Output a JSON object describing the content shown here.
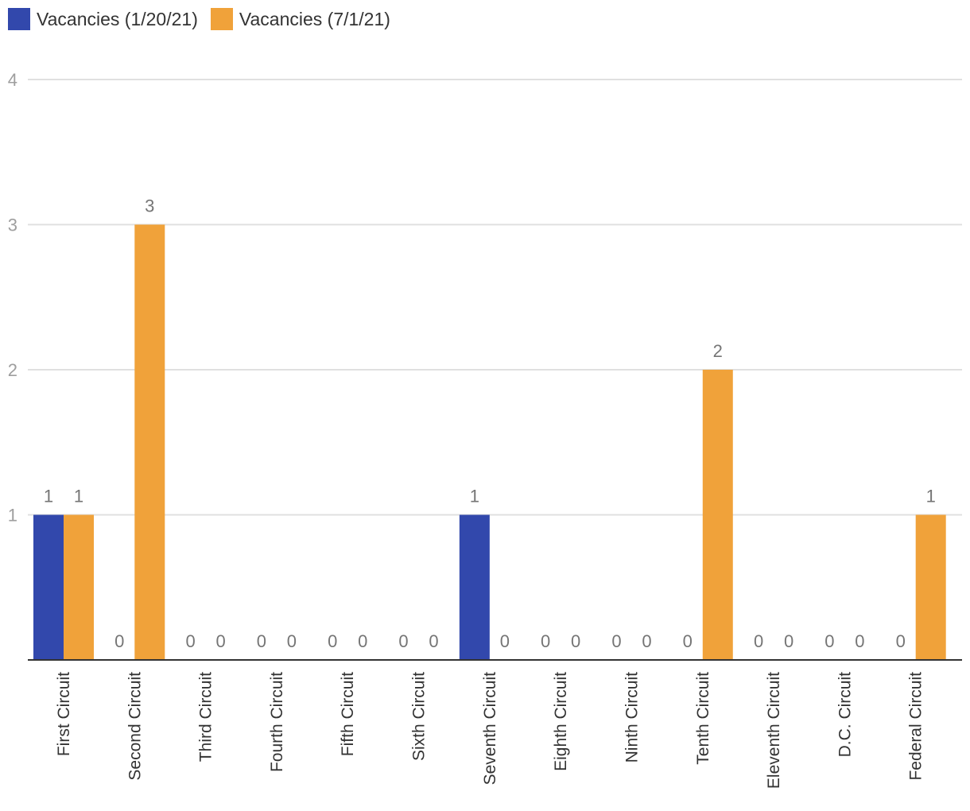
{
  "chart_data": {
    "type": "bar",
    "title": "",
    "xlabel": "",
    "ylabel": "",
    "ylim": [
      0,
      4
    ],
    "yticks": [
      1,
      2,
      3,
      4
    ],
    "grid": true,
    "legend_position": "top-left",
    "categories": [
      "First Circuit",
      "Second Circuit",
      "Third Circuit",
      "Fourth Circuit",
      "Fifth Circuit",
      "Sixth Circuit",
      "Seventh Circuit",
      "Eighth Circuit",
      "Ninth Circuit",
      "Tenth Circuit",
      "Eleventh Circuit",
      "D.C. Circuit",
      "Federal Circuit"
    ],
    "series": [
      {
        "name": "Vacancies (1/20/21)",
        "color": "#3248ac",
        "values": [
          1,
          0,
          0,
          0,
          0,
          0,
          1,
          0,
          0,
          0,
          0,
          0,
          0
        ]
      },
      {
        "name": "Vacancies (7/1/21)",
        "color": "#f0a23a",
        "values": [
          1,
          3,
          0,
          0,
          0,
          0,
          0,
          0,
          0,
          2,
          0,
          0,
          1
        ]
      }
    ]
  }
}
